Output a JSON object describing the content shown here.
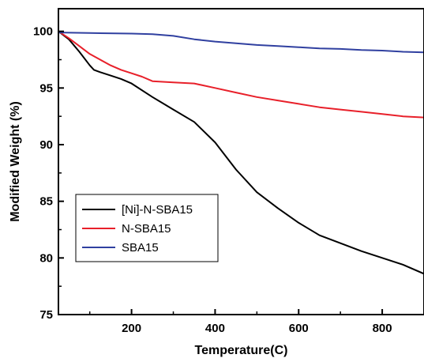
{
  "chart_data": {
    "type": "line",
    "title": "",
    "xlabel": "Temperature(C)",
    "ylabel": "Modified Weight (%)",
    "xlim": [
      25,
      900
    ],
    "ylim": [
      75,
      102
    ],
    "xticks": [
      200,
      400,
      600,
      800
    ],
    "yticks": [
      75,
      80,
      85,
      90,
      95,
      100
    ],
    "grid": false,
    "legend_position": "bottom-left",
    "series": [
      {
        "name": "[Ni]-N-SBA15",
        "color": "#000000",
        "x": [
          25,
          50,
          75,
          100,
          110,
          125,
          150,
          175,
          200,
          250,
          300,
          350,
          400,
          450,
          500,
          550,
          600,
          650,
          700,
          750,
          800,
          850,
          900
        ],
        "y": [
          100,
          99.3,
          98.2,
          97,
          96.6,
          96.4,
          96.1,
          95.8,
          95.4,
          94.2,
          93.1,
          92.0,
          90.2,
          87.8,
          85.8,
          84.4,
          83.1,
          82.0,
          81.3,
          80.6,
          80.0,
          79.4,
          78.6
        ]
      },
      {
        "name": "N-SBA15",
        "color": "#e8202a",
        "x": [
          25,
          50,
          75,
          100,
          125,
          150,
          175,
          200,
          225,
          250,
          300,
          350,
          400,
          450,
          500,
          550,
          600,
          650,
          700,
          750,
          800,
          850,
          900
        ],
        "y": [
          100,
          99.4,
          98.7,
          98.0,
          97.5,
          97.0,
          96.6,
          96.3,
          96.0,
          95.6,
          95.5,
          95.4,
          95.0,
          94.6,
          94.2,
          93.9,
          93.6,
          93.3,
          93.1,
          92.9,
          92.7,
          92.5,
          92.4
        ]
      },
      {
        "name": "SBA15",
        "color": "#3040a0",
        "x": [
          25,
          100,
          200,
          250,
          300,
          350,
          400,
          450,
          500,
          550,
          600,
          650,
          700,
          750,
          800,
          850,
          900
        ],
        "y": [
          99.9,
          99.85,
          99.8,
          99.75,
          99.6,
          99.3,
          99.1,
          98.95,
          98.8,
          98.7,
          98.6,
          98.5,
          98.45,
          98.35,
          98.3,
          98.2,
          98.15
        ]
      }
    ]
  }
}
